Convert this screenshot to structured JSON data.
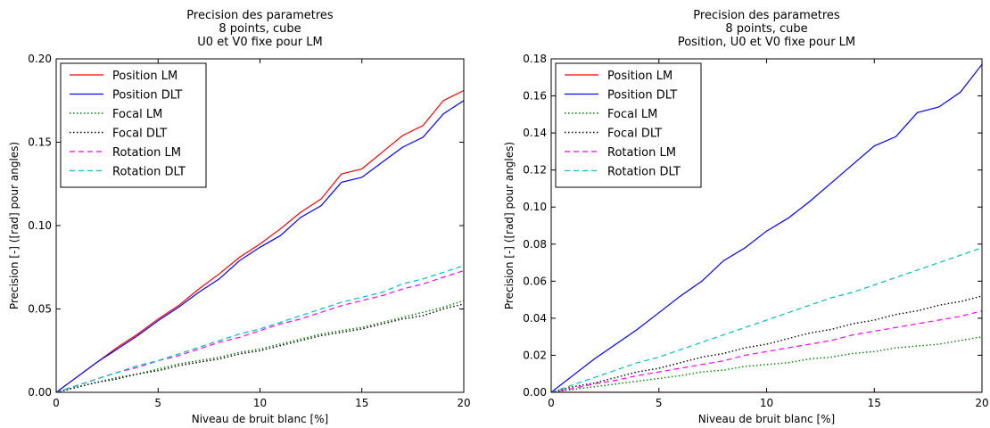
{
  "chart_data": [
    {
      "type": "line",
      "title_lines": [
        "Precision des parametres",
        "8 points, cube",
        "U0 et V0 fixe pour LM"
      ],
      "xlabel": "Niveau de bruit blanc [%]",
      "ylabel": "Precision [-] ([rad] pour angles)",
      "xlim": [
        0,
        20
      ],
      "ylim": [
        0,
        0.2
      ],
      "xticks": [
        0,
        5,
        10,
        15,
        20
      ],
      "yticks": [
        0.0,
        0.05,
        0.1,
        0.15,
        0.2
      ],
      "ytick_labels": [
        "0.00",
        "0.05",
        "0.10",
        "0.15",
        "0.20"
      ],
      "grid": false,
      "legend_position": "top-left",
      "x": [
        0,
        1,
        2,
        3,
        4,
        5,
        6,
        7,
        8,
        9,
        10,
        11,
        12,
        13,
        14,
        15,
        16,
        17,
        18,
        19,
        20
      ],
      "series": [
        {
          "name": "Position LM",
          "color": "#ff0000",
          "style": "solid",
          "values": [
            0,
            0.009,
            0.018,
            0.027,
            0.035,
            0.044,
            0.052,
            0.062,
            0.071,
            0.081,
            0.089,
            0.098,
            0.108,
            0.116,
            0.131,
            0.134,
            0.144,
            0.154,
            0.16,
            0.175,
            0.181
          ]
        },
        {
          "name": "Position DLT",
          "color": "#0000ff",
          "style": "solid",
          "values": [
            0,
            0.009,
            0.018,
            0.026,
            0.034,
            0.043,
            0.051,
            0.06,
            0.068,
            0.079,
            0.087,
            0.094,
            0.105,
            0.112,
            0.126,
            0.129,
            0.138,
            0.147,
            0.153,
            0.167,
            0.175
          ]
        },
        {
          "name": "Focal LM",
          "color": "#008000",
          "style": "dotted",
          "values": [
            0,
            0.003,
            0.006,
            0.009,
            0.011,
            0.014,
            0.017,
            0.019,
            0.021,
            0.024,
            0.026,
            0.029,
            0.032,
            0.035,
            0.037,
            0.039,
            0.042,
            0.045,
            0.048,
            0.051,
            0.055
          ]
        },
        {
          "name": "Focal DLT",
          "color": "#000000",
          "style": "dotted",
          "values": [
            0,
            0.003,
            0.006,
            0.008,
            0.011,
            0.013,
            0.016,
            0.018,
            0.02,
            0.023,
            0.025,
            0.028,
            0.031,
            0.034,
            0.036,
            0.038,
            0.041,
            0.044,
            0.046,
            0.05,
            0.053
          ]
        },
        {
          "name": "Rotation LM",
          "color": "#ff00ff",
          "style": "dashed",
          "values": [
            0,
            0.004,
            0.008,
            0.012,
            0.015,
            0.019,
            0.022,
            0.026,
            0.03,
            0.033,
            0.037,
            0.041,
            0.044,
            0.048,
            0.052,
            0.055,
            0.058,
            0.062,
            0.065,
            0.069,
            0.073
          ]
        },
        {
          "name": "Rotation DLT",
          "color": "#00bfbf",
          "style": "dashed",
          "values": [
            0,
            0.004,
            0.008,
            0.012,
            0.016,
            0.019,
            0.023,
            0.027,
            0.031,
            0.035,
            0.038,
            0.042,
            0.046,
            0.05,
            0.054,
            0.057,
            0.06,
            0.065,
            0.068,
            0.072,
            0.076
          ]
        }
      ]
    },
    {
      "type": "line",
      "title_lines": [
        "Precision des parametres",
        "8 points, cube",
        "Position, U0 et V0 fixe pour LM"
      ],
      "xlabel": "Niveau de bruit blanc [%]",
      "ylabel": "Precision [-] ([rad] pour angles)",
      "xlim": [
        0,
        20
      ],
      "ylim": [
        0,
        0.18
      ],
      "xticks": [
        0,
        5,
        10,
        15,
        20
      ],
      "yticks": [
        0.0,
        0.02,
        0.04,
        0.06,
        0.08,
        0.1,
        0.12,
        0.14,
        0.16,
        0.18
      ],
      "ytick_labels": [
        "0.00",
        "0.02",
        "0.04",
        "0.06",
        "0.08",
        "0.10",
        "0.12",
        "0.14",
        "0.16",
        "0.18"
      ],
      "grid": false,
      "legend_position": "top-left",
      "x": [
        0,
        1,
        2,
        3,
        4,
        5,
        6,
        7,
        8,
        9,
        10,
        11,
        12,
        13,
        14,
        15,
        16,
        17,
        18,
        19,
        20
      ],
      "series": [
        {
          "name": "Position LM",
          "color": "#ff0000",
          "style": "solid",
          "values": [
            0,
            0,
            0,
            0,
            0,
            0,
            0,
            0,
            0,
            0,
            0,
            0,
            0,
            0,
            0,
            0,
            0,
            0,
            0,
            0,
            0
          ]
        },
        {
          "name": "Position DLT",
          "color": "#0000ff",
          "style": "solid",
          "values": [
            0,
            0.009,
            0.018,
            0.026,
            0.034,
            0.043,
            0.052,
            0.06,
            0.071,
            0.078,
            0.087,
            0.094,
            0.103,
            0.113,
            0.123,
            0.133,
            0.138,
            0.151,
            0.154,
            0.162,
            0.177
          ]
        },
        {
          "name": "Focal LM",
          "color": "#008000",
          "style": "dotted",
          "values": [
            0,
            0.0015,
            0.003,
            0.0045,
            0.006,
            0.0075,
            0.009,
            0.011,
            0.012,
            0.014,
            0.015,
            0.016,
            0.018,
            0.019,
            0.021,
            0.022,
            0.024,
            0.025,
            0.026,
            0.028,
            0.03
          ]
        },
        {
          "name": "Focal DLT",
          "color": "#000000",
          "style": "dotted",
          "values": [
            0,
            0.003,
            0.005,
            0.008,
            0.011,
            0.013,
            0.016,
            0.019,
            0.021,
            0.024,
            0.026,
            0.029,
            0.032,
            0.034,
            0.037,
            0.039,
            0.042,
            0.044,
            0.047,
            0.049,
            0.052
          ]
        },
        {
          "name": "Rotation LM",
          "color": "#ff00ff",
          "style": "dashed",
          "values": [
            0,
            0.002,
            0.0045,
            0.0065,
            0.009,
            0.011,
            0.013,
            0.015,
            0.017,
            0.02,
            0.022,
            0.024,
            0.026,
            0.028,
            0.031,
            0.033,
            0.035,
            0.037,
            0.039,
            0.041,
            0.044
          ]
        },
        {
          "name": "Rotation DLT",
          "color": "#00bfbf",
          "style": "dashed",
          "values": [
            0,
            0.004,
            0.008,
            0.012,
            0.016,
            0.019,
            0.023,
            0.027,
            0.031,
            0.035,
            0.039,
            0.043,
            0.047,
            0.051,
            0.054,
            0.058,
            0.062,
            0.066,
            0.07,
            0.074,
            0.078
          ]
        }
      ]
    }
  ]
}
